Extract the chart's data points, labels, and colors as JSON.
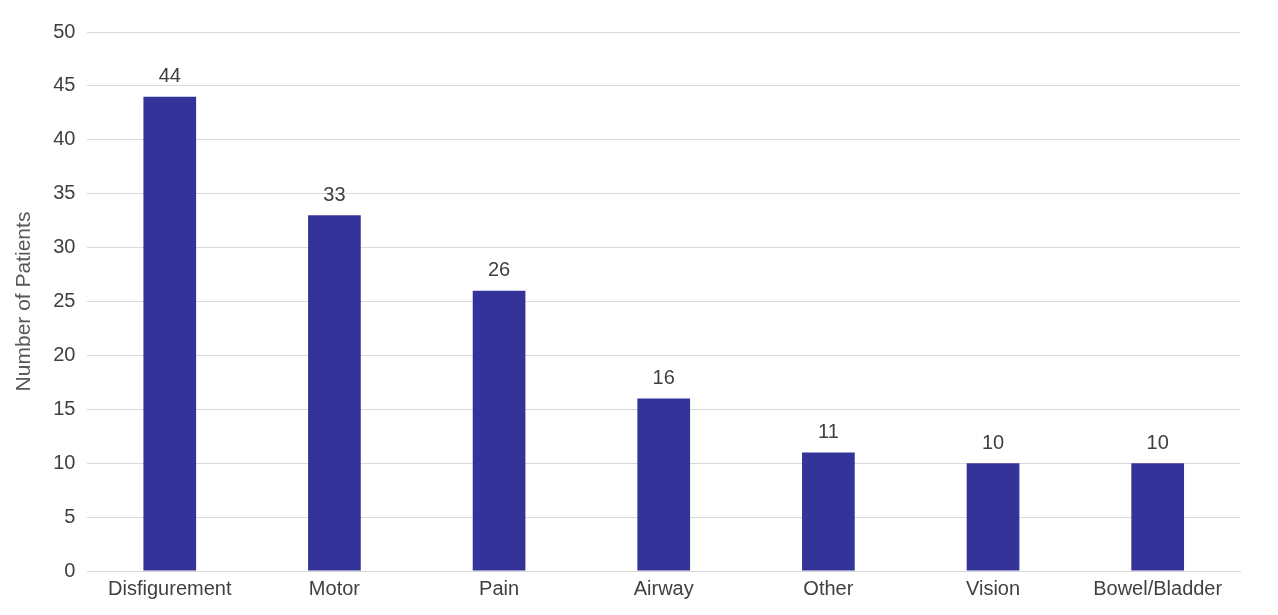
{
  "chart_data": {
    "type": "bar",
    "ylabel": "Number of Patients",
    "categories": [
      "Disfigurement",
      "Motor",
      "Pain",
      "Airway",
      "Other",
      "Vision",
      "Bowel/Bladder"
    ],
    "values": [
      44,
      33,
      26,
      16,
      11,
      10,
      10
    ],
    "color": "#333399",
    "ylim": [
      0,
      50
    ],
    "yticks": [
      0,
      5,
      10,
      15,
      20,
      25,
      30,
      35,
      40,
      45,
      50
    ],
    "grid": "y",
    "data_labels": true,
    "legend": false
  }
}
